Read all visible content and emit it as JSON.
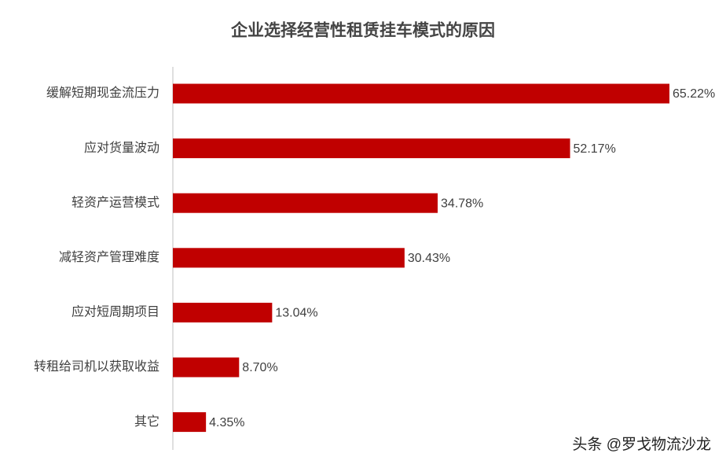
{
  "chart_data": {
    "type": "bar",
    "orientation": "horizontal",
    "title": "企业选择经营性租赁挂车模式的原因",
    "categories": [
      "缓解短期现金流压力",
      "应对货量波动",
      "轻资产运营模式",
      "减轻资产管理难度",
      "应对短周期项目",
      "转租给司机以获取收益",
      "其它"
    ],
    "values": [
      65.22,
      52.17,
      34.78,
      30.43,
      13.04,
      8.7,
      4.35
    ],
    "value_labels": [
      "65.22%",
      "52.17%",
      "34.78%",
      "30.43%",
      "13.04%",
      "8.70%",
      "4.35%"
    ],
    "color": "#c00000",
    "annotation": "头条 @罗戈物流沙龙"
  }
}
